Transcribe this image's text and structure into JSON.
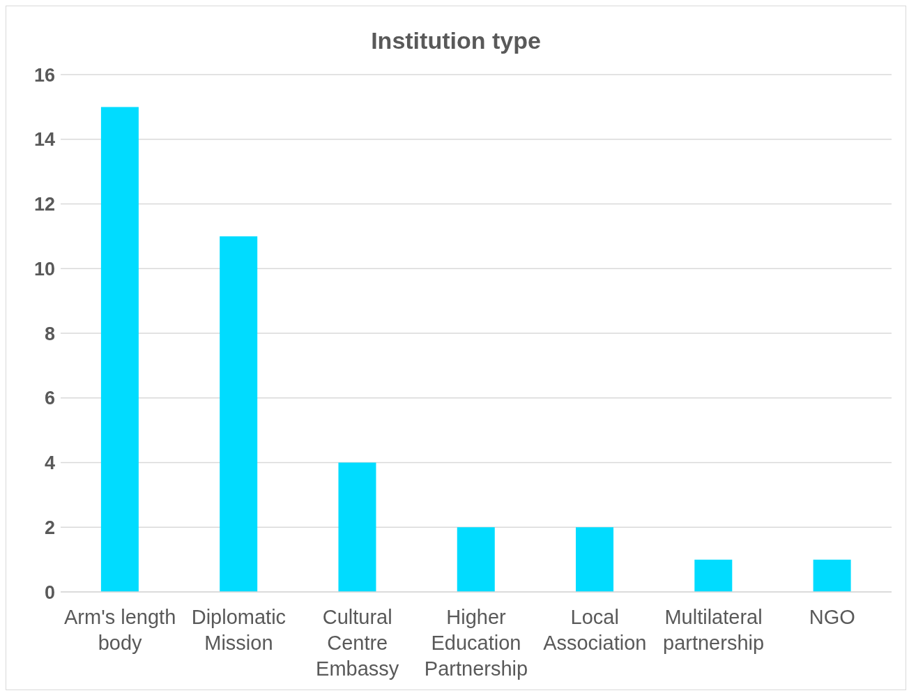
{
  "chart_data": {
    "type": "bar",
    "title": "Institution type",
    "categories": [
      "Arm's length body",
      "Diplomatic Mission",
      "Cultural Centre Embassy",
      "Higher Education Partnership",
      "Local Association",
      "Multilateral partnership",
      "NGO"
    ],
    "values": [
      15,
      11,
      4,
      2,
      2,
      1,
      1
    ],
    "color": "#00dcff",
    "ylim": [
      0,
      16
    ],
    "yticks": [
      0,
      2,
      4,
      6,
      8,
      10,
      12,
      14,
      16
    ],
    "grid": "y",
    "legend": false
  }
}
